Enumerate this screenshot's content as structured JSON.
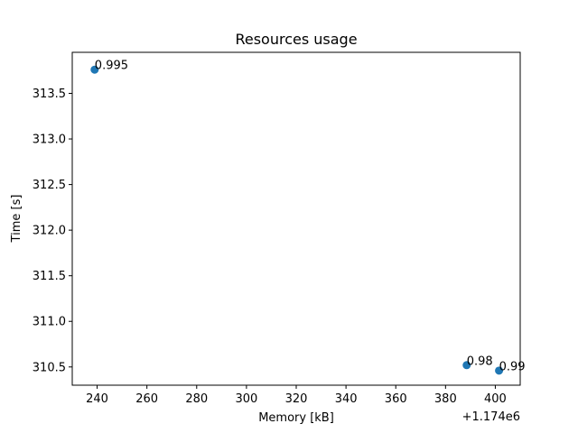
{
  "chart_data": {
    "type": "scatter",
    "title": "Resources usage",
    "xlabel": "Memory [kB]",
    "ylabel": "Time [s]",
    "x_offset_label": "+1.174e6",
    "xlim": [
      230,
      410
    ],
    "ylim": [
      310.3,
      313.95
    ],
    "xticks": [
      240,
      260,
      280,
      300,
      320,
      340,
      360,
      380,
      400
    ],
    "yticks": [
      310.5,
      311.0,
      311.5,
      312.0,
      312.5,
      313.0,
      313.5
    ],
    "ytick_labels": [
      "310.5",
      "311.0",
      "311.5",
      "312.0",
      "312.5",
      "313.0",
      "313.5"
    ],
    "grid": false,
    "point_color": "#1f77b4",
    "points": [
      {
        "x": 239,
        "y": 313.76,
        "label": "0.995"
      },
      {
        "x": 388.5,
        "y": 310.52,
        "label": "0.98"
      },
      {
        "x": 401.5,
        "y": 310.46,
        "label": "0.99"
      }
    ]
  }
}
